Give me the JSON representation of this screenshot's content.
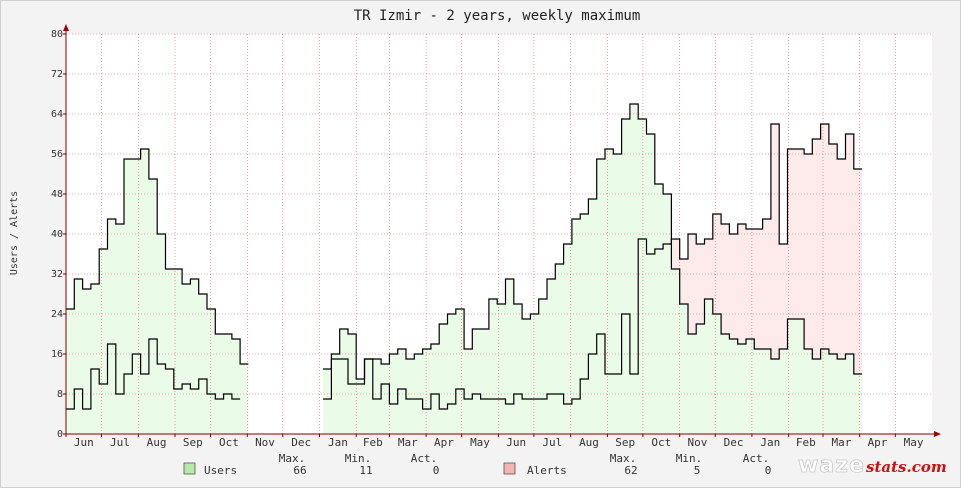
{
  "chart_data": {
    "type": "area",
    "title": "TR Izmir - 2 years, weekly maximum",
    "xlabel": "",
    "ylabel": "Users / Alerts",
    "ylim": [
      0,
      80
    ],
    "yticks": [
      0,
      8,
      16,
      24,
      32,
      40,
      48,
      56,
      64,
      72,
      80
    ],
    "x_months": [
      "Jun",
      "Jul",
      "Aug",
      "Sep",
      "Oct",
      "Nov",
      "Dec",
      "Jan",
      "Feb",
      "Mar",
      "Apr",
      "May",
      "Jun",
      "Jul",
      "Aug",
      "Sep",
      "Oct",
      "Nov",
      "Dec",
      "Jan",
      "Feb",
      "Mar",
      "Apr",
      "May"
    ],
    "x_period_start": "2022-06-01",
    "x_period_end": "2024-05-31",
    "grid": true,
    "legend_position": "bottom",
    "colors": {
      "users_line": "#000000",
      "users_fill": "#eafbe8",
      "alerts_line": "#000000",
      "alerts_fill": "#fdeaea",
      "grid": "#e06060",
      "axis": "#800000",
      "arrow": "#a00000",
      "users_swatch": "#b8e8a8",
      "alerts_swatch": "#f4b4b4"
    },
    "stats_header": {
      "max": "Max.",
      "min": "Min.",
      "act": "Act."
    },
    "series": [
      {
        "name": "Users",
        "stats": {
          "max": "66",
          "min": "11",
          "act": "0"
        },
        "points": [
          [
            0,
            25
          ],
          [
            1,
            31
          ],
          [
            2,
            29
          ],
          [
            3,
            30
          ],
          [
            4,
            37
          ],
          [
            5,
            43
          ],
          [
            6,
            42
          ],
          [
            7,
            55
          ],
          [
            8,
            55
          ],
          [
            9,
            57
          ],
          [
            10,
            51
          ],
          [
            11,
            40
          ],
          [
            12,
            33
          ],
          [
            13,
            33
          ],
          [
            14,
            30
          ],
          [
            15,
            31
          ],
          [
            16,
            28
          ],
          [
            17,
            25
          ],
          [
            18,
            20
          ],
          [
            19,
            20
          ],
          [
            20,
            19
          ],
          [
            21,
            14
          ],
          null,
          [
            31,
            13
          ],
          [
            32,
            16
          ],
          [
            33,
            21
          ],
          [
            34,
            20
          ],
          [
            35,
            11
          ],
          [
            36,
            15
          ],
          [
            37,
            15
          ],
          [
            38,
            14
          ],
          [
            39,
            16
          ],
          [
            40,
            17
          ],
          [
            41,
            15
          ],
          [
            42,
            16
          ],
          [
            43,
            17
          ],
          [
            44,
            18
          ],
          [
            45,
            22
          ],
          [
            46,
            24
          ],
          [
            47,
            25
          ],
          [
            48,
            17
          ],
          [
            49,
            21
          ],
          [
            50,
            21
          ],
          [
            51,
            27
          ],
          [
            52,
            26
          ],
          [
            53,
            31
          ],
          [
            54,
            26
          ],
          [
            55,
            23
          ],
          [
            56,
            24
          ],
          [
            57,
            27
          ],
          [
            58,
            31
          ],
          [
            59,
            34
          ],
          [
            60,
            38
          ],
          [
            61,
            43
          ],
          [
            62,
            44
          ],
          [
            63,
            47
          ],
          [
            64,
            55
          ],
          [
            65,
            57
          ],
          [
            66,
            56
          ],
          [
            67,
            63
          ],
          [
            68,
            66
          ],
          [
            69,
            63
          ],
          [
            70,
            60
          ],
          [
            71,
            50
          ],
          [
            72,
            48
          ],
          [
            73,
            33
          ],
          [
            74,
            26
          ],
          [
            75,
            20
          ],
          [
            76,
            22
          ],
          [
            77,
            27
          ],
          [
            78,
            24
          ],
          [
            79,
            20
          ],
          [
            80,
            19
          ],
          [
            81,
            18
          ],
          [
            82,
            19
          ],
          [
            83,
            17
          ],
          [
            84,
            17
          ],
          [
            85,
            15
          ],
          [
            86,
            17
          ],
          [
            87,
            23
          ],
          [
            88,
            23
          ],
          [
            89,
            17
          ],
          [
            90,
            15
          ],
          [
            91,
            17
          ],
          [
            92,
            16
          ],
          [
            93,
            15
          ],
          [
            94,
            16
          ],
          [
            95,
            12
          ]
        ]
      },
      {
        "name": "Alerts",
        "stats": {
          "max": "62",
          "min": "5",
          "act": "0"
        },
        "points": [
          [
            0,
            5
          ],
          [
            1,
            9
          ],
          [
            2,
            5
          ],
          [
            3,
            13
          ],
          [
            4,
            10
          ],
          [
            5,
            18
          ],
          [
            6,
            8
          ],
          [
            7,
            12
          ],
          [
            8,
            16
          ],
          [
            9,
            12
          ],
          [
            10,
            19
          ],
          [
            11,
            14
          ],
          [
            12,
            13
          ],
          [
            13,
            9
          ],
          [
            14,
            10
          ],
          [
            15,
            9
          ],
          [
            16,
            11
          ],
          [
            17,
            8
          ],
          [
            18,
            7
          ],
          [
            19,
            8
          ],
          [
            20,
            7
          ],
          null,
          [
            31,
            7
          ],
          [
            32,
            15
          ],
          [
            33,
            15
          ],
          [
            34,
            10
          ],
          [
            35,
            10
          ],
          [
            36,
            15
          ],
          [
            37,
            7
          ],
          [
            38,
            10
          ],
          [
            39,
            6
          ],
          [
            40,
            9
          ],
          [
            41,
            7
          ],
          [
            42,
            7
          ],
          [
            43,
            5
          ],
          [
            44,
            8
          ],
          [
            45,
            5
          ],
          [
            46,
            6
          ],
          [
            47,
            9
          ],
          [
            48,
            7
          ],
          [
            49,
            8
          ],
          [
            50,
            7
          ],
          [
            51,
            7
          ],
          [
            52,
            7
          ],
          [
            53,
            6
          ],
          [
            54,
            8
          ],
          [
            55,
            7
          ],
          [
            56,
            7
          ],
          [
            57,
            7
          ],
          [
            58,
            8
          ],
          [
            59,
            8
          ],
          [
            60,
            6
          ],
          [
            61,
            7
          ],
          [
            62,
            11
          ],
          [
            63,
            16
          ],
          [
            64,
            20
          ],
          [
            65,
            12
          ],
          [
            66,
            12
          ],
          [
            67,
            24
          ],
          [
            68,
            12
          ],
          [
            69,
            39
          ],
          [
            70,
            36
          ],
          [
            71,
            37
          ],
          [
            72,
            38
          ],
          [
            73,
            39
          ],
          [
            74,
            35
          ],
          [
            75,
            40
          ],
          [
            76,
            38
          ],
          [
            77,
            39
          ],
          [
            78,
            44
          ],
          [
            79,
            42
          ],
          [
            80,
            40
          ],
          [
            81,
            42
          ],
          [
            82,
            41
          ],
          [
            83,
            41
          ],
          [
            84,
            43
          ],
          [
            85,
            62
          ],
          [
            86,
            38
          ],
          [
            87,
            57
          ],
          [
            88,
            57
          ],
          [
            89,
            56
          ],
          [
            90,
            59
          ],
          [
            91,
            62
          ],
          [
            92,
            58
          ],
          [
            93,
            55
          ],
          [
            94,
            60
          ],
          [
            95,
            53
          ]
        ]
      }
    ]
  },
  "logo": {
    "word": "waze",
    "suffix": "stats.com"
  }
}
